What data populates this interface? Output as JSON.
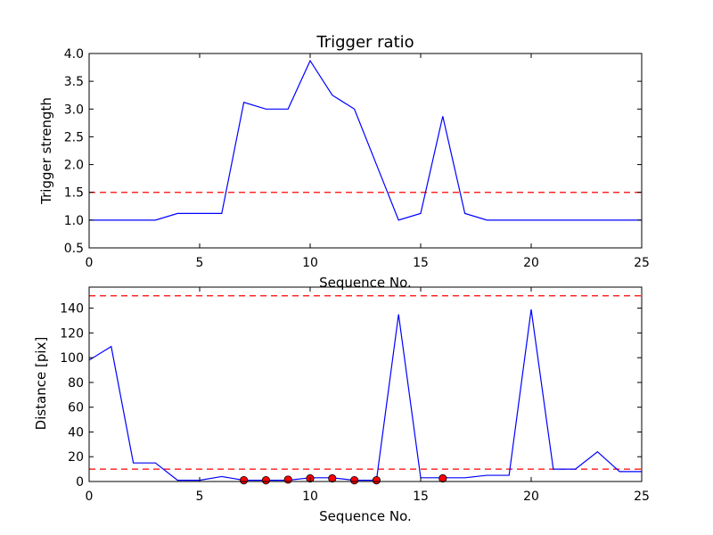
{
  "colors": {
    "line": "#0000ff",
    "threshold": "#ff0000",
    "marker_fill": "#ff0000",
    "marker_edge": "#000000",
    "axes": "#000000"
  },
  "chart_data": [
    {
      "type": "line",
      "title": "Trigger ratio",
      "xlabel": "Sequence No.",
      "ylabel": "Trigger strength",
      "xlim": [
        0,
        25
      ],
      "ylim": [
        0.5,
        4.0
      ],
      "x_ticks": [
        0,
        5,
        10,
        15,
        20,
        25
      ],
      "x_tick_labels": [
        "0",
        "5",
        "10",
        "15",
        "20",
        "25"
      ],
      "y_ticks": [
        0.5,
        1.0,
        1.5,
        2.0,
        2.5,
        3.0,
        3.5,
        4.0
      ],
      "y_tick_labels": [
        "0.5",
        "1.0",
        "1.5",
        "2.0",
        "2.5",
        "3.0",
        "3.5",
        "4.0"
      ],
      "grid": false,
      "series": [
        {
          "x": [
            0,
            1,
            2,
            3,
            4,
            5,
            6,
            7,
            8,
            9,
            10,
            11,
            12,
            13,
            14,
            15,
            16,
            17,
            18,
            19,
            20,
            21,
            22,
            23,
            24,
            25
          ],
          "values": [
            1.0,
            1.0,
            1.0,
            1.0,
            1.12,
            1.12,
            1.12,
            3.12,
            3.0,
            3.0,
            3.87,
            3.25,
            3.0,
            2.0,
            1.0,
            1.12,
            2.87,
            1.12,
            1.0,
            1.0,
            1.0,
            1.0,
            1.0,
            1.0,
            1.0,
            1.0
          ]
        }
      ],
      "thresholds": [
        1.5
      ]
    },
    {
      "type": "line",
      "title": "",
      "xlabel": "Sequence No.",
      "ylabel": "Distance [pix]",
      "xlim": [
        0,
        25
      ],
      "ylim": [
        0,
        157
      ],
      "x_ticks": [
        0,
        5,
        10,
        15,
        20,
        25
      ],
      "x_tick_labels": [
        "0",
        "5",
        "10",
        "15",
        "20",
        "25"
      ],
      "y_ticks": [
        0,
        20,
        40,
        60,
        80,
        100,
        120,
        140
      ],
      "y_tick_labels": [
        "0",
        "20",
        "40",
        "60",
        "80",
        "100",
        "120",
        "140"
      ],
      "grid": false,
      "series": [
        {
          "x": [
            0,
            1,
            2,
            3,
            4,
            5,
            6,
            7,
            8,
            9,
            10,
            11,
            12,
            13,
            14,
            15,
            16,
            17,
            18,
            19,
            20,
            21,
            22,
            23,
            24,
            25
          ],
          "values": [
            98,
            109,
            15,
            15,
            1,
            1,
            4,
            1,
            1,
            1,
            3,
            3,
            1,
            1,
            135,
            3,
            3,
            3,
            5,
            5,
            139,
            10,
            10,
            24,
            8,
            8
          ]
        }
      ],
      "markers": {
        "x": [
          7,
          8,
          9,
          10,
          11,
          12,
          13,
          16
        ],
        "values": [
          1,
          1,
          1.5,
          2.5,
          2.5,
          1,
          1,
          2.5
        ]
      },
      "thresholds": [
        10,
        150
      ]
    }
  ]
}
